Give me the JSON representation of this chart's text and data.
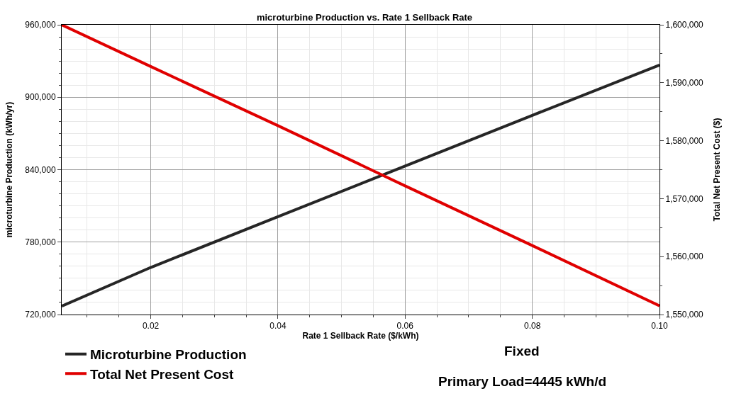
{
  "chart_data": {
    "type": "line",
    "title": "microturbine Production vs. Rate 1 Sellback Rate",
    "xlabel": "Rate 1 Sellback Rate ($/kWh)",
    "ylabel": "microturbine Production (kWh/yr)",
    "y2label": "Total Net Present Cost ($)",
    "x": [
      0.006,
      0.02,
      0.04,
      0.06,
      0.08,
      0.1
    ],
    "series": [
      {
        "name": "Microturbine Production",
        "color": "#262626",
        "values": [
          727000,
          759000,
          801000,
          843000,
          885000,
          926700
        ]
      },
      {
        "name": "Total Net Present Cost",
        "color": "#e00000",
        "axis": "y2",
        "values": [
          1600000,
          1592800,
          1582600,
          1572200,
          1561900,
          1551500
        ]
      }
    ],
    "xlim": [
      0.006,
      0.1
    ],
    "xticks": [
      0.02,
      0.04,
      0.06,
      0.08,
      {
        "value": 0.1,
        "label": "0.10"
      }
    ],
    "ylim": [
      720000,
      960000
    ],
    "yticks": [
      {
        "value": 720000,
        "label": "720,000"
      },
      {
        "value": 780000,
        "label": "780,000"
      },
      {
        "value": 840000,
        "label": "840,000"
      },
      {
        "value": 900000,
        "label": "900,000"
      },
      {
        "value": 960000,
        "label": "960,000"
      }
    ],
    "y2lim": [
      1550000,
      1600000
    ],
    "y2ticks": [
      {
        "value": 1550000,
        "label": "1,550,000"
      },
      {
        "value": 1560000,
        "label": "1,560,000"
      },
      {
        "value": 1570000,
        "label": "1,570,000"
      },
      {
        "value": 1580000,
        "label": "1,580,000"
      },
      {
        "value": 1590000,
        "label": "1,590,000"
      },
      {
        "value": 1600000,
        "label": "1,600,000"
      }
    ],
    "annotations": [
      "Fixed",
      "Primary Load=4445 kWh/d"
    ],
    "grid": true,
    "legend": "bottom left",
    "marker": "none",
    "line_style": "solid"
  }
}
